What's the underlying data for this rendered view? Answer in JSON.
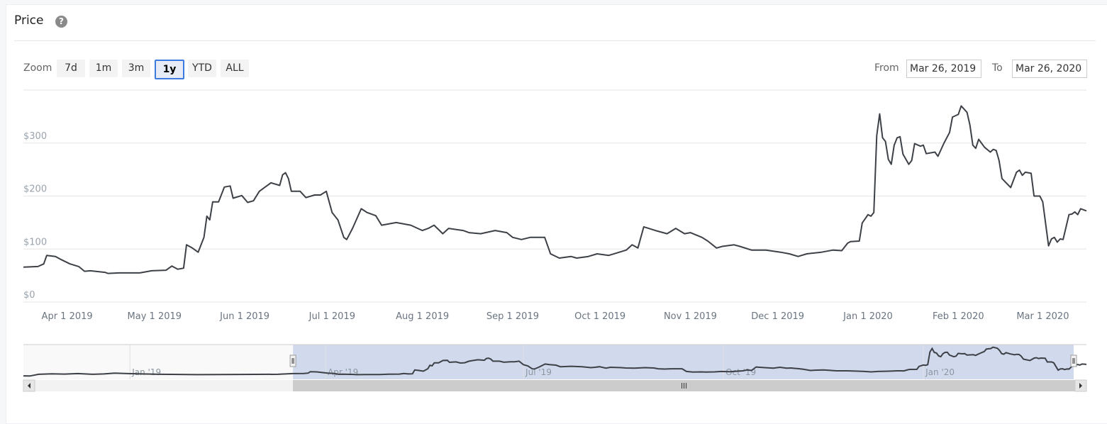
{
  "header": {
    "title": "Price",
    "help_icon": "question-circle-icon"
  },
  "range_selector": {
    "zoom_label": "Zoom",
    "buttons": [
      "7d",
      "1m",
      "3m",
      "1y",
      "YTD",
      "ALL"
    ],
    "selected": "1y",
    "from_label": "From",
    "from_value": "Mar 26, 2019",
    "to_label": "To",
    "to_value": "Mar 26, 2020"
  },
  "colors": {
    "line": "#3d4147",
    "grid": "#e6e6e6",
    "selected_border": "#3d7be0",
    "navigator_mask": "#ccd6eb"
  },
  "chart_data": {
    "type": "line",
    "title": "",
    "xlabel": "",
    "ylabel": "",
    "x_range": [
      "2019-03-17",
      "2020-03-16"
    ],
    "ylim": [
      0,
      400
    ],
    "grid": true,
    "y_ticks": [
      {
        "value": 0,
        "label": "$0"
      },
      {
        "value": 100,
        "label": "$100"
      },
      {
        "value": 200,
        "label": "$200"
      },
      {
        "value": 300,
        "label": "$300"
      },
      {
        "value": 400,
        "label": ""
      }
    ],
    "x_ticks": [
      {
        "date": "2019-04-01",
        "label": "Apr 1 2019"
      },
      {
        "date": "2019-05-01",
        "label": "May 1 2019"
      },
      {
        "date": "2019-06-01",
        "label": "Jun 1 2019"
      },
      {
        "date": "2019-07-01",
        "label": "Jul 1 2019"
      },
      {
        "date": "2019-08-01",
        "label": "Aug 1 2019"
      },
      {
        "date": "2019-09-01",
        "label": "Sep 1 2019"
      },
      {
        "date": "2019-10-01",
        "label": "Oct 1 2019"
      },
      {
        "date": "2019-11-01",
        "label": "Nov 1 2019"
      },
      {
        "date": "2019-12-01",
        "label": "Dec 1 2019"
      },
      {
        "date": "2020-01-01",
        "label": "Jan 1 2020"
      },
      {
        "date": "2020-02-01",
        "label": "Feb 1 2020"
      },
      {
        "date": "2020-03-01",
        "label": "Mar 1 2020"
      }
    ],
    "series": [
      {
        "points": [
          [
            "2019-03-17",
            66
          ],
          [
            "2019-03-22",
            67
          ],
          [
            "2019-03-24",
            72
          ],
          [
            "2019-03-25",
            88
          ],
          [
            "2019-03-28",
            86
          ],
          [
            "2019-03-30",
            80
          ],
          [
            "2019-04-02",
            72
          ],
          [
            "2019-04-05",
            67
          ],
          [
            "2019-04-07",
            58
          ],
          [
            "2019-04-09",
            59
          ],
          [
            "2019-04-14",
            56
          ],
          [
            "2019-04-15",
            54
          ],
          [
            "2019-04-19",
            55
          ],
          [
            "2019-04-26",
            55
          ],
          [
            "2019-04-30",
            59
          ],
          [
            "2019-05-05",
            60
          ],
          [
            "2019-05-07",
            68
          ],
          [
            "2019-05-09",
            62
          ],
          [
            "2019-05-11",
            64
          ],
          [
            "2019-05-12",
            108
          ],
          [
            "2019-05-14",
            102
          ],
          [
            "2019-05-16",
            94
          ],
          [
            "2019-05-18",
            122
          ],
          [
            "2019-05-19",
            162
          ],
          [
            "2019-05-20",
            155
          ],
          [
            "2019-05-21",
            189
          ],
          [
            "2019-05-23",
            189
          ],
          [
            "2019-05-25",
            217
          ],
          [
            "2019-05-27",
            219
          ],
          [
            "2019-05-28",
            196
          ],
          [
            "2019-05-31",
            201
          ],
          [
            "2019-06-02",
            188
          ],
          [
            "2019-06-04",
            191
          ],
          [
            "2019-06-06",
            209
          ],
          [
            "2019-06-08",
            217
          ],
          [
            "2019-06-10",
            225
          ],
          [
            "2019-06-13",
            220
          ],
          [
            "2019-06-14",
            240
          ],
          [
            "2019-06-15",
            244
          ],
          [
            "2019-06-16",
            233
          ],
          [
            "2019-06-17",
            209
          ],
          [
            "2019-06-20",
            209
          ],
          [
            "2019-06-22",
            197
          ],
          [
            "2019-06-25",
            202
          ],
          [
            "2019-06-27",
            202
          ],
          [
            "2019-06-29",
            209
          ],
          [
            "2019-07-01",
            169
          ],
          [
            "2019-07-03",
            155
          ],
          [
            "2019-07-05",
            122
          ],
          [
            "2019-07-06",
            118
          ],
          [
            "2019-07-08",
            139
          ],
          [
            "2019-07-11",
            176
          ],
          [
            "2019-07-13",
            169
          ],
          [
            "2019-07-16",
            163
          ],
          [
            "2019-07-18",
            145
          ],
          [
            "2019-07-23",
            150
          ],
          [
            "2019-07-28",
            145
          ],
          [
            "2019-08-01",
            135
          ],
          [
            "2019-08-03",
            139
          ],
          [
            "2019-08-05",
            145
          ],
          [
            "2019-08-08",
            129
          ],
          [
            "2019-08-10",
            139
          ],
          [
            "2019-08-15",
            135
          ],
          [
            "2019-08-17",
            131
          ],
          [
            "2019-08-21",
            129
          ],
          [
            "2019-08-26",
            135
          ],
          [
            "2019-08-30",
            131
          ],
          [
            "2019-09-01",
            122
          ],
          [
            "2019-09-04",
            118
          ],
          [
            "2019-09-07",
            122
          ],
          [
            "2019-09-12",
            122
          ],
          [
            "2019-09-14",
            91
          ],
          [
            "2019-09-17",
            83
          ],
          [
            "2019-09-21",
            86
          ],
          [
            "2019-09-23",
            83
          ],
          [
            "2019-09-27",
            86
          ],
          [
            "2019-09-30",
            91
          ],
          [
            "2019-10-04",
            88
          ],
          [
            "2019-10-10",
            98
          ],
          [
            "2019-10-12",
            108
          ],
          [
            "2019-10-14",
            102
          ],
          [
            "2019-10-16",
            142
          ],
          [
            "2019-10-20",
            135
          ],
          [
            "2019-10-24",
            129
          ],
          [
            "2019-10-27",
            139
          ],
          [
            "2019-10-30",
            129
          ],
          [
            "2019-11-01",
            131
          ],
          [
            "2019-11-05",
            122
          ],
          [
            "2019-11-07",
            115
          ],
          [
            "2019-11-10",
            102
          ],
          [
            "2019-11-12",
            105
          ],
          [
            "2019-11-16",
            108
          ],
          [
            "2019-11-18",
            105
          ],
          [
            "2019-11-22",
            98
          ],
          [
            "2019-11-27",
            98
          ],
          [
            "2019-12-02",
            94
          ],
          [
            "2019-12-05",
            91
          ],
          [
            "2019-12-08",
            86
          ],
          [
            "2019-12-11",
            91
          ],
          [
            "2019-12-16",
            94
          ],
          [
            "2019-12-20",
            98
          ],
          [
            "2019-12-23",
            97
          ],
          [
            "2019-12-25",
            111
          ],
          [
            "2019-12-26",
            114
          ],
          [
            "2019-12-29",
            115
          ],
          [
            "2019-12-30",
            149
          ],
          [
            "2020-01-01",
            165
          ],
          [
            "2020-01-02",
            162
          ],
          [
            "2020-01-03",
            169
          ],
          [
            "2020-01-04",
            314
          ],
          [
            "2020-01-05",
            355
          ],
          [
            "2020-01-06",
            310
          ],
          [
            "2020-01-07",
            303
          ],
          [
            "2020-01-08",
            269
          ],
          [
            "2020-01-09",
            260
          ],
          [
            "2020-01-10",
            296
          ],
          [
            "2020-01-11",
            310
          ],
          [
            "2020-01-12",
            312
          ],
          [
            "2020-01-13",
            279
          ],
          [
            "2020-01-15",
            260
          ],
          [
            "2020-01-16",
            267
          ],
          [
            "2020-01-17",
            299
          ],
          [
            "2020-01-19",
            294
          ],
          [
            "2020-01-20",
            296
          ],
          [
            "2020-01-21",
            280
          ],
          [
            "2020-01-24",
            283
          ],
          [
            "2020-01-25",
            275
          ],
          [
            "2020-01-26",
            287
          ],
          [
            "2020-01-27",
            299
          ],
          [
            "2020-01-29",
            320
          ],
          [
            "2020-01-30",
            349
          ],
          [
            "2020-02-01",
            354
          ],
          [
            "2020-02-02",
            370
          ],
          [
            "2020-02-04",
            358
          ],
          [
            "2020-02-05",
            334
          ],
          [
            "2020-02-06",
            296
          ],
          [
            "2020-02-07",
            290
          ],
          [
            "2020-02-08",
            307
          ],
          [
            "2020-02-10",
            292
          ],
          [
            "2020-02-12",
            283
          ],
          [
            "2020-02-13",
            288
          ],
          [
            "2020-02-14",
            286
          ],
          [
            "2020-02-15",
            267
          ],
          [
            "2020-02-16",
            233
          ],
          [
            "2020-02-19",
            216
          ],
          [
            "2020-02-21",
            245
          ],
          [
            "2020-02-22",
            249
          ],
          [
            "2020-02-23",
            239
          ],
          [
            "2020-02-24",
            245
          ],
          [
            "2020-02-26",
            243
          ],
          [
            "2020-02-27",
            200
          ],
          [
            "2020-02-29",
            200
          ],
          [
            "2020-03-01",
            189
          ],
          [
            "2020-03-03",
            106
          ],
          [
            "2020-03-04",
            119
          ],
          [
            "2020-03-05",
            122
          ],
          [
            "2020-03-06",
            113
          ],
          [
            "2020-03-07",
            119
          ],
          [
            "2020-03-08",
            118
          ],
          [
            "2020-03-10",
            165
          ],
          [
            "2020-03-11",
            166
          ],
          [
            "2020-03-12",
            170
          ],
          [
            "2020-03-13",
            165
          ],
          [
            "2020-03-14",
            176
          ],
          [
            "2020-03-16",
            172
          ]
        ]
      }
    ]
  },
  "navigator": {
    "x_range": [
      "2018-11-13",
      "2020-03-16"
    ],
    "ylim": [
      0,
      400
    ],
    "history": [
      [
        "2018-11-13",
        40
      ],
      [
        "2018-11-16",
        38
      ],
      [
        "2018-11-20",
        58
      ],
      [
        "2018-11-26",
        64
      ],
      [
        "2018-12-02",
        60
      ],
      [
        "2018-12-08",
        66
      ],
      [
        "2018-12-15",
        58
      ],
      [
        "2018-12-20",
        62
      ],
      [
        "2018-12-25",
        72
      ],
      [
        "2018-12-31",
        66
      ],
      [
        "2019-01-05",
        64
      ],
      [
        "2019-01-15",
        58
      ],
      [
        "2019-02-01",
        54
      ],
      [
        "2019-02-20",
        56
      ],
      [
        "2019-03-10",
        58
      ]
    ],
    "ticks": [
      {
        "date": "2019-01-01",
        "label": "Jan '19"
      },
      {
        "date": "2019-04-01",
        "label": "Apr '19"
      },
      {
        "date": "2019-07-01",
        "label": "Jul '19"
      },
      {
        "date": "2019-10-01",
        "label": "Oct '19"
      },
      {
        "date": "2020-01-01",
        "label": "Jan '20"
      }
    ],
    "handle_icon": "grip-handle-icon",
    "scrollbar": {
      "left_icon": "arrow-left-icon",
      "right_icon": "arrow-right-icon",
      "thumb_icon": "grip-lines-icon"
    }
  }
}
